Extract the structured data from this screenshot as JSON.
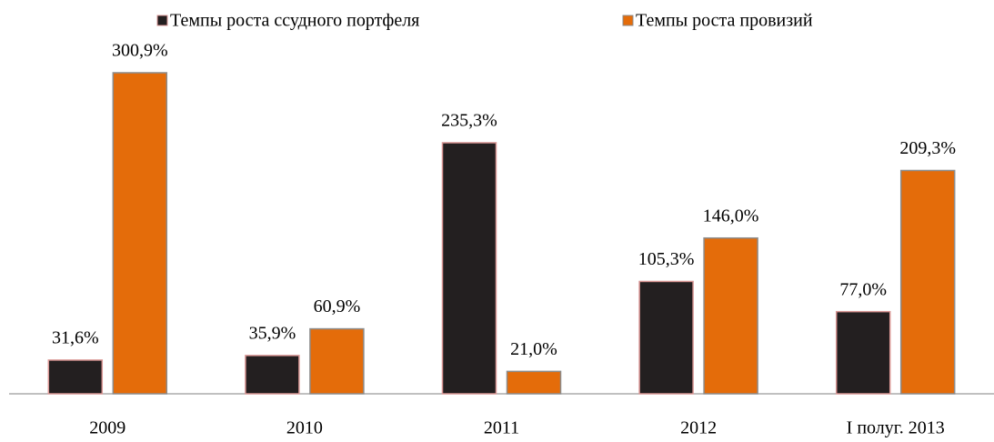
{
  "chart_data": {
    "type": "bar",
    "categories": [
      "2009",
      "2010",
      "2011",
      "2012",
      "I полуг. 2013"
    ],
    "series": [
      {
        "name": "Темпы роста ссудного портфеля",
        "color": "#231f20",
        "values": [
          31.6,
          35.9,
          235.3,
          105.3,
          77.0
        ],
        "value_labels": [
          "31,6%",
          "35,9%",
          "235,3%",
          "105,3%",
          "77,0%"
        ]
      },
      {
        "name": "Темпы роста провизий",
        "color": "#e46c0a",
        "values": [
          300.9,
          60.9,
          21.0,
          146.0,
          209.3
        ],
        "value_labels": [
          "300,9%",
          "60,9%",
          "21,0%",
          "146,0%",
          "209,3%"
        ]
      }
    ],
    "legend": "top"
  }
}
